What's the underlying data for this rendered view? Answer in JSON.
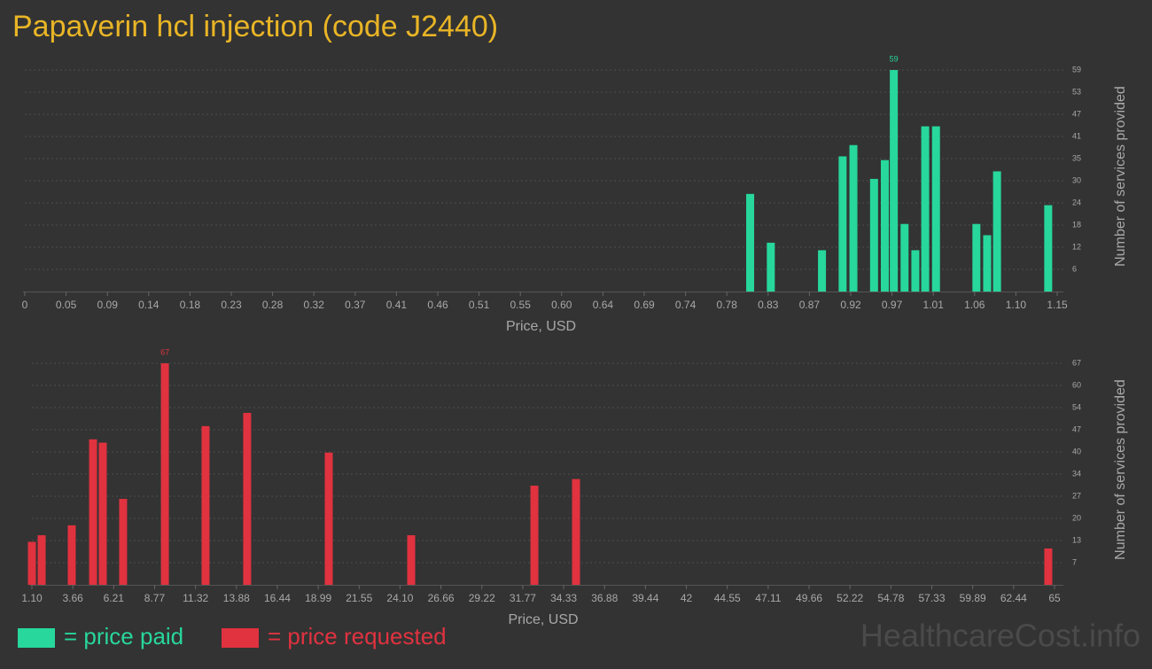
{
  "title": "Papaverin hcl injection (code J2440)",
  "watermark": "HealthcareCost.info",
  "chart_data": [
    {
      "type": "bar",
      "xlabel": "Price, USD",
      "ylabel": "Number of services provided",
      "x": [
        0.808,
        0.831,
        0.888,
        0.911,
        0.923,
        0.946,
        0.958,
        0.968,
        0.98,
        0.992,
        1.003,
        1.015,
        1.06,
        1.072,
        1.083,
        1.14
      ],
      "series": [
        {
          "name": "= price paid",
          "color": "#27d79c",
          "values": [
            26,
            13,
            11,
            36,
            39,
            30,
            35,
            59,
            18,
            11,
            44,
            44,
            18,
            15,
            32,
            23
          ]
        }
      ],
      "xlim": [
        0,
        1.15
      ],
      "xticks": [
        0,
        {
          "value": 0.046,
          "label": "0.05"
        },
        {
          "value": 0.092,
          "label": "0.09"
        },
        {
          "value": 0.138,
          "label": "0.14"
        },
        {
          "value": 0.184,
          "label": "0.18"
        },
        0.23,
        {
          "value": 0.276,
          "label": "0.28"
        },
        {
          "value": 0.322,
          "label": "0.32"
        },
        {
          "value": 0.368,
          "label": "0.37"
        },
        {
          "value": 0.414,
          "label": "0.41"
        },
        0.46,
        {
          "value": 0.506,
          "label": "0.51"
        },
        {
          "value": 0.552,
          "label": "0.55"
        },
        {
          "value": 0.598,
          "label": "0.60"
        },
        {
          "value": 0.644,
          "label": "0.64"
        },
        0.69,
        {
          "value": 0.736,
          "label": "0.74"
        },
        {
          "value": 0.782,
          "label": "0.78"
        },
        {
          "value": 0.828,
          "label": "0.83"
        },
        {
          "value": 0.874,
          "label": "0.87"
        },
        0.92,
        {
          "value": 0.966,
          "label": "0.97"
        },
        {
          "value": 1.012,
          "label": "1.01"
        },
        {
          "value": 1.058,
          "label": "1.06"
        },
        {
          "value": 1.104,
          "label": "1.10"
        },
        1.15
      ],
      "ylim": [
        0,
        59
      ],
      "yticks": [
        {
          "value": 5.9,
          "label": "6"
        },
        {
          "value": 11.8,
          "label": "12"
        },
        {
          "value": 17.7,
          "label": "18"
        },
        {
          "value": 23.6,
          "label": "24"
        },
        {
          "value": 29.5,
          "label": "30"
        },
        {
          "value": 35.4,
          "label": "35"
        },
        {
          "value": 41.3,
          "label": "41"
        },
        {
          "value": 47.2,
          "label": "47"
        },
        {
          "value": 53.1,
          "label": "53"
        },
        59
      ],
      "grid": true
    },
    {
      "type": "bar",
      "xlabel": "Price, USD",
      "ylabel": "Number of services provided",
      "x": [
        1.1,
        1.71,
        3.59,
        4.92,
        5.53,
        6.8,
        9.41,
        11.95,
        14.55,
        19.65,
        24.8,
        32.5,
        35.1,
        64.61
      ],
      "series": [
        {
          "name": "= price requested",
          "color": "#e0323f",
          "values": [
            13,
            15,
            18,
            44,
            43,
            26,
            67,
            48,
            52,
            40,
            15,
            30,
            32,
            11
          ]
        }
      ],
      "xlim": [
        1.1,
        65
      ],
      "xticks": [
        {
          "value": 1.1,
          "label": "1.10"
        },
        {
          "value": 3.656,
          "label": "3.66"
        },
        {
          "value": 6.212,
          "label": "6.21"
        },
        {
          "value": 8.768,
          "label": "8.77"
        },
        {
          "value": 11.324,
          "label": "11.32"
        },
        13.88,
        {
          "value": 16.436,
          "label": "16.44"
        },
        {
          "value": 18.992,
          "label": "18.99"
        },
        {
          "value": 21.548,
          "label": "21.55"
        },
        {
          "value": 24.104,
          "label": "24.10"
        },
        26.66,
        {
          "value": 29.216,
          "label": "29.22"
        },
        {
          "value": 31.772,
          "label": "31.77"
        },
        {
          "value": 34.328,
          "label": "34.33"
        },
        {
          "value": 36.884,
          "label": "36.88"
        },
        39.44,
        {
          "value": 41.996,
          "label": "42"
        },
        {
          "value": 44.552,
          "label": "44.55"
        },
        {
          "value": 47.108,
          "label": "47.11"
        },
        {
          "value": 49.664,
          "label": "49.66"
        },
        52.22,
        {
          "value": 54.776,
          "label": "54.78"
        },
        {
          "value": 57.332,
          "label": "57.33"
        },
        {
          "value": 59.888,
          "label": "59.89"
        },
        {
          "value": 62.444,
          "label": "62.44"
        },
        65
      ],
      "ylim": [
        0,
        67
      ],
      "yticks": [
        {
          "value": 6.7,
          "label": "7"
        },
        {
          "value": 13.4,
          "label": "13"
        },
        {
          "value": 20.1,
          "label": "20"
        },
        {
          "value": 26.8,
          "label": "27"
        },
        {
          "value": 33.5,
          "label": "34"
        },
        {
          "value": 40.2,
          "label": "40"
        },
        {
          "value": 46.9,
          "label": "47"
        },
        {
          "value": 53.6,
          "label": "54"
        },
        {
          "value": 60.3,
          "label": "60"
        },
        67
      ],
      "grid": true
    }
  ]
}
